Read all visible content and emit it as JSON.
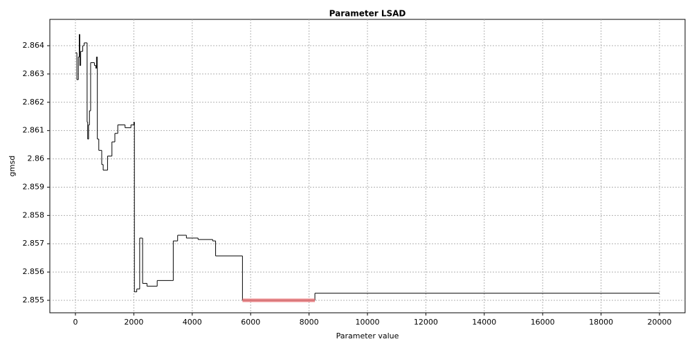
{
  "chart_data": {
    "type": "step-line",
    "title": "Parameter LSAD",
    "x_label": "Parameter value",
    "y_label": "gmsd",
    "xlim": [
      -877,
      20877
    ],
    "ylim": [
      2.85456,
      2.86493
    ],
    "xticks": [
      0,
      2000,
      4000,
      6000,
      8000,
      10000,
      12000,
      14000,
      16000,
      18000,
      20000
    ],
    "yticks": [
      2.855,
      2.856,
      2.857,
      2.858,
      2.859,
      2.86,
      2.861,
      2.862,
      2.863,
      2.864
    ],
    "grid": true,
    "series": [
      {
        "color": "#000000",
        "x": [
          0,
          50,
          100,
          130,
          150,
          180,
          250,
          300,
          400,
          420,
          450,
          480,
          520,
          650,
          700,
          720,
          750,
          800,
          900,
          950,
          1100,
          1250,
          1350,
          1450,
          1700,
          1900,
          2000,
          2020,
          2100,
          2200,
          2280,
          2300,
          2450,
          2800,
          3300,
          3350,
          3500,
          3800,
          4200,
          4700,
          4800,
          5720,
          8200,
          20000
        ],
        "values": [
          2.86375,
          2.8628,
          2.8636,
          2.8644,
          2.8633,
          2.8638,
          2.864,
          2.8641,
          2.8613,
          2.8607,
          2.8612,
          2.8617,
          2.8634,
          2.8633,
          2.8632,
          2.8636,
          2.8607,
          2.8603,
          2.8598,
          2.8596,
          2.8601,
          2.8606,
          2.8609,
          2.8612,
          2.8611,
          2.8612,
          2.8613,
          2.8553,
          2.8554,
          2.8572,
          2.8572,
          2.8556,
          2.8555,
          2.8557,
          2.8557,
          2.8571,
          2.8573,
          2.8572,
          2.85715,
          2.8571,
          2.85657,
          2.855,
          2.85525,
          2.85525
        ]
      },
      {
        "color": "#e8777a",
        "x": [
          5720,
          8200
        ],
        "values": [
          2.855,
          2.855
        ]
      }
    ]
  }
}
